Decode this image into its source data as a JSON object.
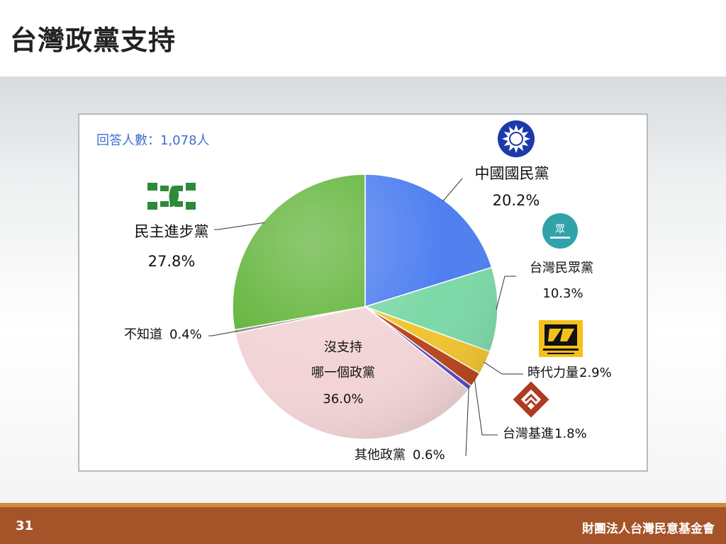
{
  "slide": {
    "title": "台灣政黨支持",
    "page_number": "31",
    "organization": "財團法人台灣民意基金會"
  },
  "colors": {
    "footer_bar": "#a55328",
    "footer_stripe": "#d38a3a"
  },
  "chart_data": {
    "type": "pie",
    "title": "",
    "note": "回答人數：1,078人",
    "slices": [
      {
        "name": "中國國民黨",
        "value": 20.2,
        "value_label": "20.2%",
        "color": "#4f7ff0",
        "logo": "kmt-logo-icon"
      },
      {
        "name": "台灣民眾黨",
        "value": 10.3,
        "value_label": "10.3%",
        "color": "#7dd9a8",
        "logo": "tpp-logo-icon"
      },
      {
        "name": "時代力量",
        "value": 2.9,
        "value_label": "2.9%",
        "color": "#f1c531",
        "logo": "npp-logo-icon"
      },
      {
        "name": "台灣基進",
        "value": 1.8,
        "value_label": "1.8%",
        "color": "#b8461e",
        "logo": "tsp-logo-icon"
      },
      {
        "name": "其他政黨",
        "value": 0.6,
        "value_label": "0.6%",
        "color": "#5b49c4"
      },
      {
        "name": "沒支持哪一個政黨",
        "name_lines": [
          "沒支持",
          "哪一個政黨"
        ],
        "value": 36.0,
        "value_label": "36.0%",
        "color": "#f2d4d6"
      },
      {
        "name": "不知道",
        "value": 0.4,
        "value_label": "0.4%",
        "color": "#8b8b8b"
      },
      {
        "name": "民主進步黨",
        "value": 27.8,
        "value_label": "27.8%",
        "color": "#62b43a",
        "logo": "dpp-logo-icon"
      }
    ]
  }
}
